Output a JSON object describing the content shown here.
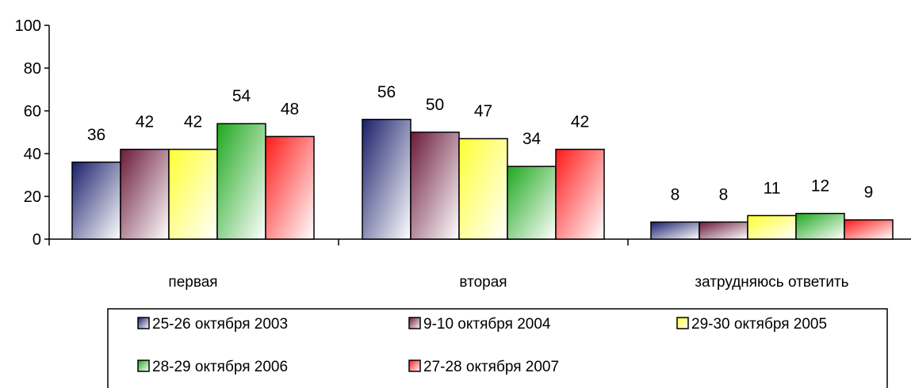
{
  "chart_data": {
    "type": "bar",
    "categories": [
      "первая",
      "вторая",
      "затрудняюсь ответить"
    ],
    "series": [
      {
        "name": "25-26 октября 2003",
        "values": [
          36,
          56,
          8
        ],
        "color": "#1a1f6b"
      },
      {
        "name": "9-10 октября 2004",
        "values": [
          42,
          50,
          8
        ],
        "color": "#6b1a3a"
      },
      {
        "name": "29-30 октября 2005",
        "values": [
          42,
          47,
          11
        ],
        "color": "#ffff33"
      },
      {
        "name": "28-29 октября 2006",
        "values": [
          54,
          34,
          12
        ],
        "color": "#1fa81f"
      },
      {
        "name": "27-28 октября 2007",
        "values": [
          48,
          42,
          9
        ],
        "color": "#ff1a1a"
      }
    ],
    "yticks": [
      "0",
      "20",
      "40",
      "60",
      "80",
      "100"
    ],
    "ylim": [
      0,
      100
    ],
    "grid": false,
    "legend": "bottom"
  }
}
